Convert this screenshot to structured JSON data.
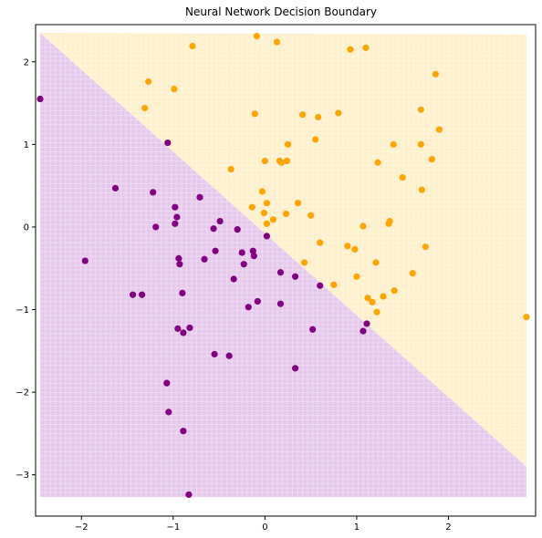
{
  "chart_data": {
    "type": "scatter",
    "title": "Neural Network Decision Boundary",
    "xlabel": "",
    "ylabel": "",
    "xlim": [
      -2.5,
      2.95
    ],
    "ylim": [
      -3.5,
      2.45
    ],
    "xticks": [
      -2,
      -1,
      0,
      1,
      2
    ],
    "yticks": [
      -3,
      -2,
      -1,
      0,
      1,
      2
    ],
    "grid": false,
    "colors": {
      "class_0": "#800080",
      "class_1": "#ffa500",
      "region_0": "#e6c8ec",
      "region_1": "#fff0cc"
    },
    "decision_boundary": {
      "description_points": [
        [
          -2.45,
          2.35
        ],
        [
          2.85,
          -2.9
        ]
      ],
      "x_range": [
        -2.45,
        2.85
      ],
      "y_range": [
        -3.27,
        2.33
      ]
    },
    "series": [
      {
        "values": [
          [
            -2.45,
            1.55
          ],
          [
            -1.96,
            -0.41
          ],
          [
            -1.63,
            0.47
          ],
          [
            -1.44,
            -0.82
          ],
          [
            -1.34,
            -0.82
          ],
          [
            -1.22,
            0.42
          ],
          [
            -1.19,
            0.0
          ],
          [
            -1.06,
            1.02
          ],
          [
            -1.07,
            -1.89
          ],
          [
            -1.05,
            -2.24
          ],
          [
            -0.98,
            0.24
          ],
          [
            -0.98,
            0.04
          ],
          [
            -0.96,
            0.12
          ],
          [
            -0.94,
            -0.38
          ],
          [
            -0.93,
            -0.45
          ],
          [
            -0.95,
            -1.23
          ],
          [
            -0.9,
            -0.8
          ],
          [
            -0.89,
            -1.28
          ],
          [
            -0.89,
            -2.47
          ],
          [
            -0.82,
            -1.22
          ],
          [
            -0.83,
            -3.24
          ],
          [
            -0.71,
            0.36
          ],
          [
            -0.66,
            -0.39
          ],
          [
            -0.56,
            -0.02
          ],
          [
            -0.54,
            -0.29
          ],
          [
            -0.55,
            -1.54
          ],
          [
            -0.49,
            0.07
          ],
          [
            -0.39,
            -1.56
          ],
          [
            -0.34,
            -0.63
          ],
          [
            -0.3,
            -0.03
          ],
          [
            -0.25,
            -0.31
          ],
          [
            -0.23,
            -0.45
          ],
          [
            -0.18,
            -0.97
          ],
          [
            -0.13,
            -0.29
          ],
          [
            -0.12,
            -0.35
          ],
          [
            -0.08,
            -0.9
          ],
          [
            0.02,
            -0.11
          ],
          [
            0.17,
            -0.55
          ],
          [
            0.17,
            -0.93
          ],
          [
            0.33,
            -0.6
          ],
          [
            0.33,
            -1.71
          ],
          [
            0.52,
            -1.24
          ],
          [
            0.6,
            -0.71
          ],
          [
            1.07,
            -1.26
          ],
          [
            1.11,
            -1.17
          ]
        ]
      },
      {
        "values": [
          [
            -1.27,
            1.76
          ],
          [
            -1.31,
            1.44
          ],
          [
            -0.99,
            1.67
          ],
          [
            -0.79,
            2.19
          ],
          [
            -0.37,
            0.7
          ],
          [
            -0.14,
            0.24
          ],
          [
            -0.11,
            1.37
          ],
          [
            -0.09,
            2.31
          ],
          [
            -0.03,
            0.43
          ],
          [
            0.0,
            0.8
          ],
          [
            -0.01,
            0.17
          ],
          [
            0.02,
            0.29
          ],
          [
            0.02,
            0.04
          ],
          [
            0.09,
            0.09
          ],
          [
            0.13,
            2.24
          ],
          [
            0.16,
            0.8
          ],
          [
            0.18,
            0.78
          ],
          [
            0.24,
            0.8
          ],
          [
            0.25,
            1.0
          ],
          [
            0.23,
            0.16
          ],
          [
            0.36,
            0.29
          ],
          [
            0.41,
            1.36
          ],
          [
            0.43,
            -0.43
          ],
          [
            0.5,
            0.14
          ],
          [
            0.55,
            1.06
          ],
          [
            0.58,
            1.33
          ],
          [
            0.6,
            -0.19
          ],
          [
            0.8,
            1.38
          ],
          [
            0.75,
            -0.7
          ],
          [
            0.9,
            -0.23
          ],
          [
            0.93,
            2.15
          ],
          [
            0.98,
            -0.27
          ],
          [
            1.0,
            -0.6
          ],
          [
            1.07,
            0.01
          ],
          [
            1.1,
            2.17
          ],
          [
            1.12,
            -0.86
          ],
          [
            1.17,
            -0.91
          ],
          [
            1.21,
            -0.43
          ],
          [
            1.22,
            -1.03
          ],
          [
            1.23,
            0.78
          ],
          [
            1.29,
            -0.84
          ],
          [
            1.35,
            0.04
          ],
          [
            1.36,
            0.07
          ],
          [
            1.4,
            1.0
          ],
          [
            1.41,
            -0.77
          ],
          [
            1.5,
            0.6
          ],
          [
            1.61,
            -0.56
          ],
          [
            1.7,
            1.42
          ],
          [
            1.7,
            1.0
          ],
          [
            1.71,
            0.45
          ],
          [
            1.75,
            -0.24
          ],
          [
            1.82,
            0.82
          ],
          [
            1.86,
            1.85
          ],
          [
            1.9,
            1.18
          ],
          [
            2.85,
            -1.09
          ]
        ]
      }
    ]
  }
}
